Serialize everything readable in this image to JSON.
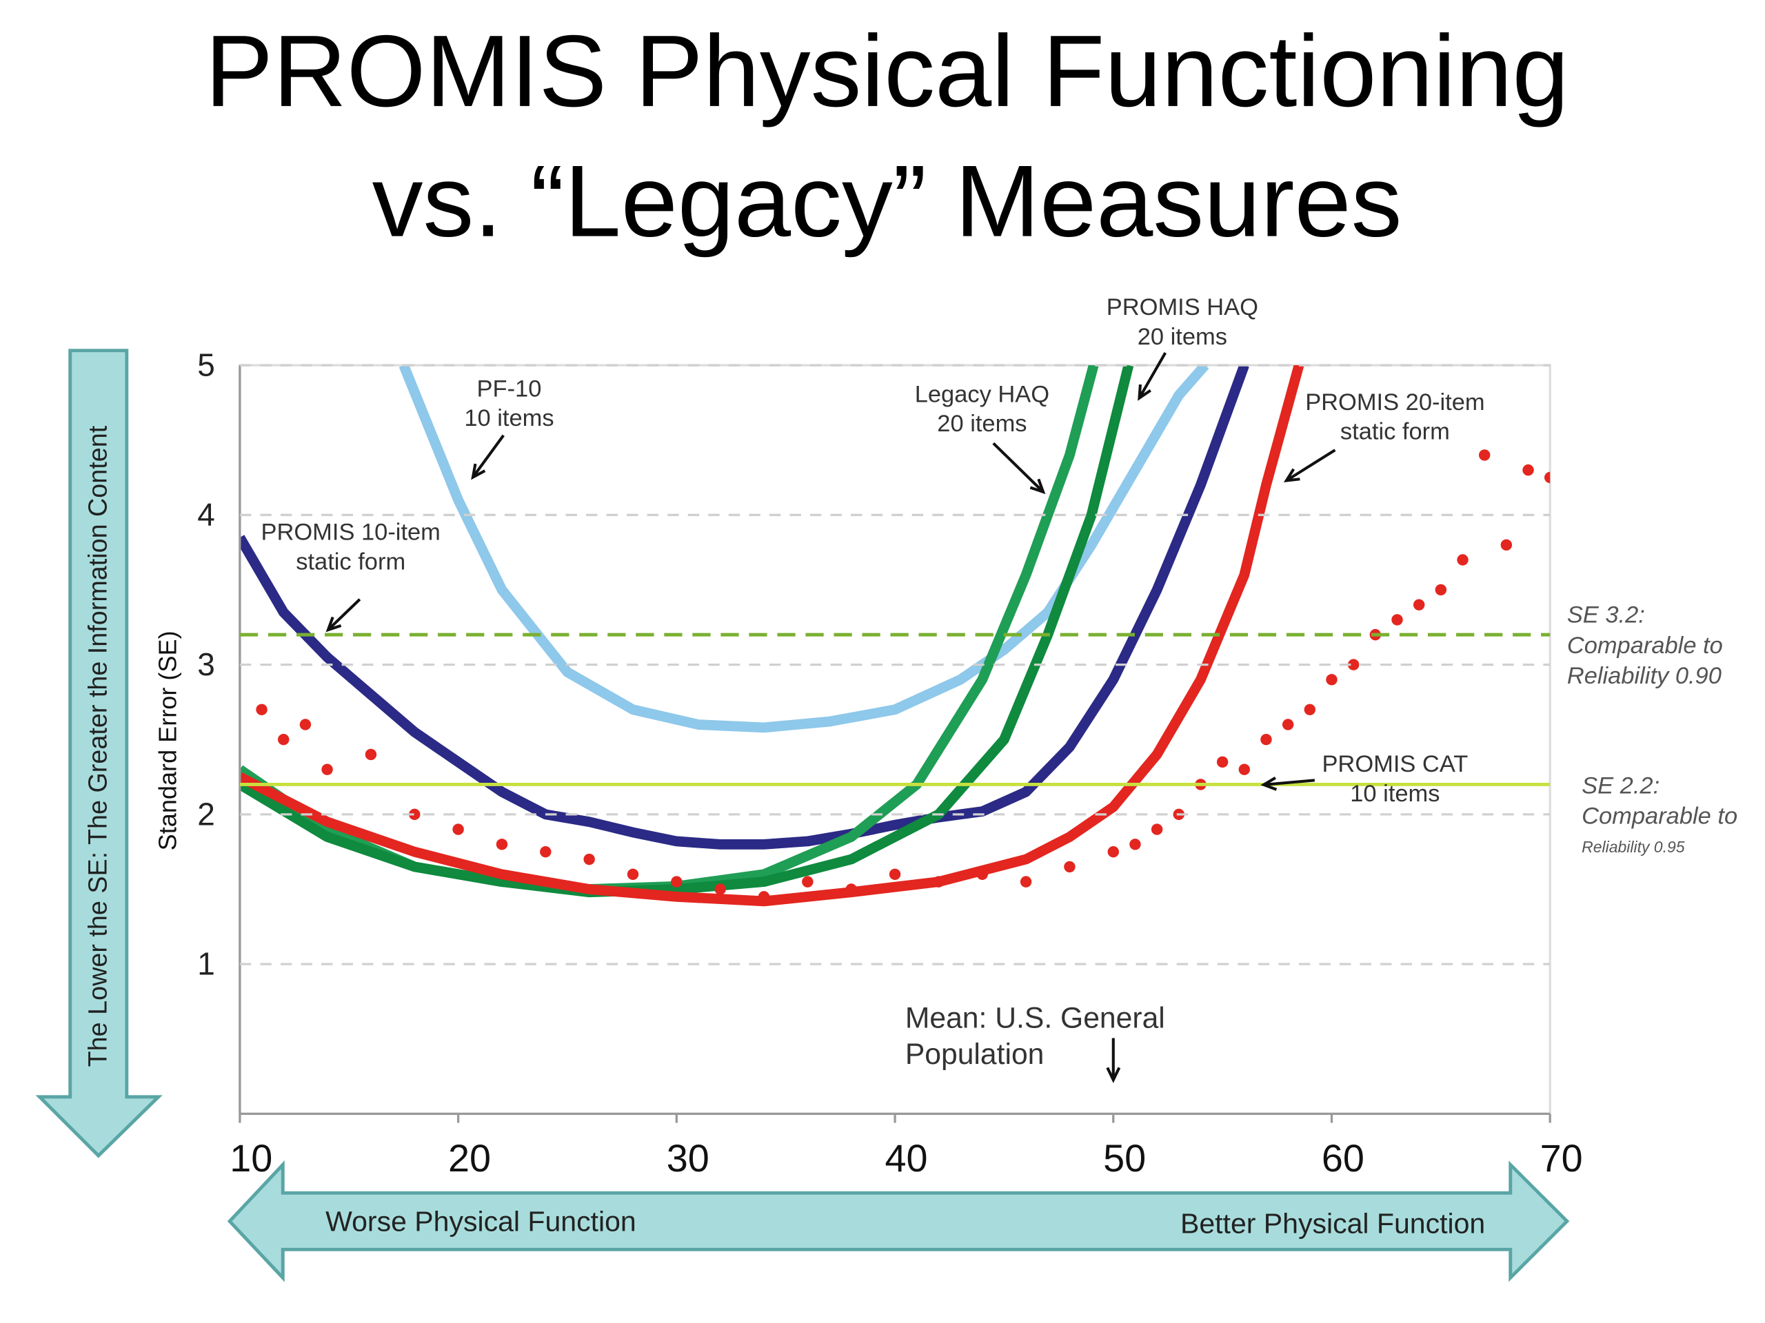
{
  "chart_data": {
    "type": "line",
    "title": [
      "PROMIS Physical Functioning",
      "vs. “Legacy” Measures"
    ],
    "ylabel": "Standard Error  (SE)",
    "side_arrow": "The Lower the SE: The Greater  the Information Content",
    "bottom_arrow": [
      "Worse Physical Function",
      "Better Physical Function"
    ],
    "xlim": [
      10,
      70
    ],
    "xticks": [
      10,
      20,
      30,
      40,
      50,
      60,
      70
    ],
    "ylim": [
      0,
      5
    ],
    "yticks": [
      1,
      2,
      3,
      4,
      5
    ],
    "grid": true,
    "series": [
      {
        "label": [
          "PF-10",
          "10 items"
        ],
        "color": "#8ec8ea",
        "style": "line",
        "x": [
          17.5,
          20,
          22,
          25,
          28,
          31,
          34,
          37,
          40,
          43,
          45,
          47,
          49,
          51,
          53,
          54.2
        ],
        "values": [
          5.0,
          4.1,
          3.5,
          2.95,
          2.7,
          2.6,
          2.58,
          2.62,
          2.7,
          2.9,
          3.1,
          3.35,
          3.8,
          4.3,
          4.8,
          5.0
        ]
      },
      {
        "label": [
          "PROMIS 10-item",
          "static form"
        ],
        "color": "#2b2a86",
        "style": "line",
        "x": [
          10,
          12,
          14,
          16,
          18,
          20,
          22,
          24,
          26,
          28,
          30,
          32,
          34,
          36,
          38,
          40,
          42,
          44,
          46,
          48,
          50,
          52,
          54,
          56
        ],
        "values": [
          3.85,
          3.35,
          3.05,
          2.8,
          2.55,
          2.35,
          2.15,
          2.0,
          1.95,
          1.88,
          1.82,
          1.8,
          1.8,
          1.82,
          1.87,
          1.93,
          1.98,
          2.02,
          2.15,
          2.45,
          2.9,
          3.5,
          4.2,
          5.0
        ]
      },
      {
        "label": [
          "Legacy HAQ",
          "20 items"
        ],
        "color": "#1f9e55",
        "style": "line",
        "x": [
          10,
          14,
          18,
          22,
          26,
          30,
          34,
          38,
          41,
          44,
          46,
          48,
          49.1
        ],
        "values": [
          2.3,
          1.9,
          1.65,
          1.55,
          1.5,
          1.52,
          1.6,
          1.85,
          2.2,
          2.9,
          3.6,
          4.4,
          5.0
        ]
      },
      {
        "label": [
          "PROMIS HAQ",
          "20 items"
        ],
        "color": "#0f8a3e",
        "style": "line",
        "x": [
          10,
          14,
          18,
          22,
          26,
          30,
          34,
          38,
          42,
          45,
          47,
          49,
          50.7
        ],
        "values": [
          2.2,
          1.85,
          1.65,
          1.55,
          1.48,
          1.5,
          1.55,
          1.7,
          2.0,
          2.5,
          3.2,
          4.0,
          5.0
        ]
      },
      {
        "label": [
          "PROMIS 20-item",
          "static form"
        ],
        "color": "#e3261f",
        "style": "line",
        "x": [
          10,
          14,
          18,
          22,
          26,
          30,
          34,
          38,
          42,
          46,
          48,
          50,
          52,
          54,
          56,
          57,
          58.5
        ],
        "values": [
          2.25,
          1.95,
          1.75,
          1.6,
          1.5,
          1.45,
          1.42,
          1.48,
          1.55,
          1.7,
          1.85,
          2.05,
          2.4,
          2.9,
          3.6,
          4.2,
          5.0
        ]
      },
      {
        "label": [
          "PROMIS CAT",
          "10 items"
        ],
        "color": "#e3261f",
        "style": "points",
        "x": [
          11,
          12,
          13,
          14,
          16,
          18,
          20,
          22,
          24,
          26,
          28,
          30,
          32,
          34,
          36,
          38,
          40,
          42,
          44,
          46,
          48,
          50,
          51,
          52,
          53,
          54,
          55,
          56,
          57,
          58,
          59,
          60,
          61,
          62,
          63,
          64,
          65,
          66,
          67,
          68,
          69,
          70
        ],
        "values": [
          2.7,
          2.5,
          2.6,
          2.3,
          2.4,
          2.0,
          1.9,
          1.8,
          1.75,
          1.7,
          1.6,
          1.55,
          1.5,
          1.45,
          1.55,
          1.5,
          1.6,
          1.55,
          1.6,
          1.55,
          1.65,
          1.75,
          1.8,
          1.9,
          2.0,
          2.2,
          2.35,
          2.3,
          2.5,
          2.6,
          2.7,
          2.9,
          3.0,
          3.2,
          3.3,
          3.4,
          3.5,
          3.7,
          4.4,
          3.8,
          4.3,
          4.25
        ]
      }
    ],
    "reference_lines": [
      {
        "value": 3.2,
        "color": "#7ab030",
        "dashed": true,
        "label": [
          "SE 3.2:",
          "Comparable to",
          "Reliability 0.90"
        ]
      },
      {
        "value": 2.2,
        "color": "#c8e040",
        "dashed": false,
        "label": [
          "SE 2.2:",
          "Comparable to",
          "Reliability 0.95"
        ]
      }
    ],
    "mean_note": {
      "x": 50,
      "label": [
        "Mean: U.S. General",
        "Population"
      ]
    }
  }
}
